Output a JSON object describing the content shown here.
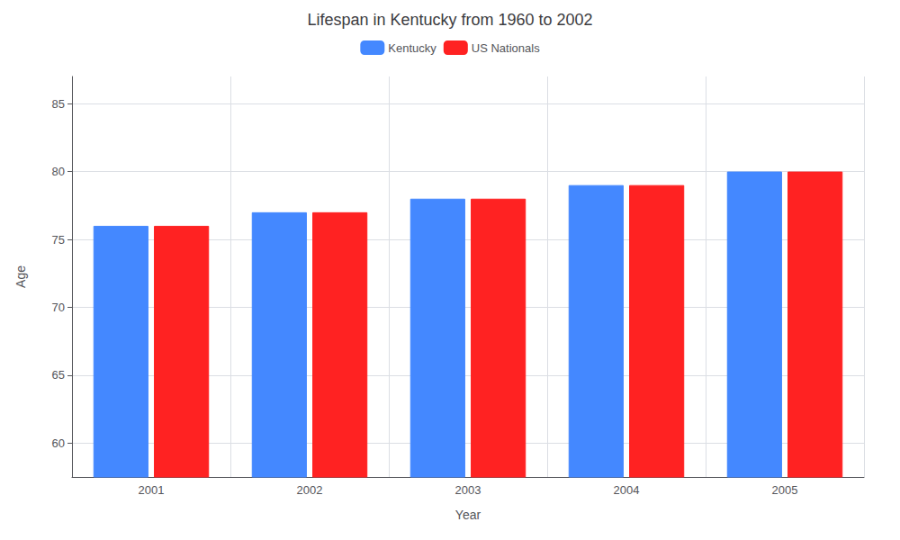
{
  "chart_data": {
    "type": "bar",
    "title": "Lifespan in Kentucky from 1960 to 2002",
    "xlabel": "Year",
    "ylabel": "Age",
    "categories": [
      "2001",
      "2002",
      "2003",
      "2004",
      "2005"
    ],
    "series": [
      {
        "name": "Kentucky",
        "color": "#4488ff",
        "values": [
          76,
          77,
          78,
          79,
          80
        ]
      },
      {
        "name": "US Nationals",
        "color": "#ff2222",
        "values": [
          76,
          77,
          78,
          79,
          80
        ]
      }
    ],
    "ylim": [
      57.5,
      87
    ],
    "yticks": [
      60,
      65,
      70,
      75,
      80,
      85
    ],
    "grid": true,
    "legend": "top"
  }
}
